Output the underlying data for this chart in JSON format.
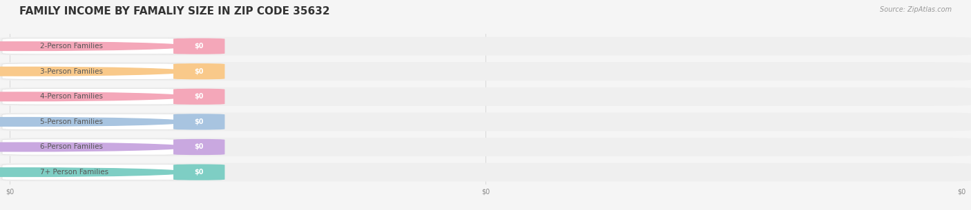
{
  "title": "FAMILY INCOME BY FAMALIY SIZE IN ZIP CODE 35632",
  "source": "Source: ZipAtlas.com",
  "categories": [
    "2-Person Families",
    "3-Person Families",
    "4-Person Families",
    "5-Person Families",
    "6-Person Families",
    "7+ Person Families"
  ],
  "values": [
    0,
    0,
    0,
    0,
    0,
    0
  ],
  "bar_colors": [
    "#f4a7b9",
    "#f9c98a",
    "#f4a7b9",
    "#a8c4e0",
    "#c9a8e0",
    "#7ecec4"
  ],
  "value_labels": [
    "$0",
    "$0",
    "$0",
    "$0",
    "$0",
    "$0"
  ],
  "background_color": "#f5f5f5",
  "bar_bg_color": "#efefef",
  "title_color": "#333333",
  "label_color": "#555555",
  "value_color": "#ffffff",
  "source_color": "#999999",
  "xlim": [
    0,
    1
  ],
  "title_fontsize": 11,
  "label_fontsize": 7.5,
  "value_fontsize": 7,
  "source_fontsize": 7,
  "xtick_labels": [
    "$0",
    "$0",
    "$0"
  ],
  "xtick_positions": [
    0.0,
    0.5,
    1.0
  ]
}
